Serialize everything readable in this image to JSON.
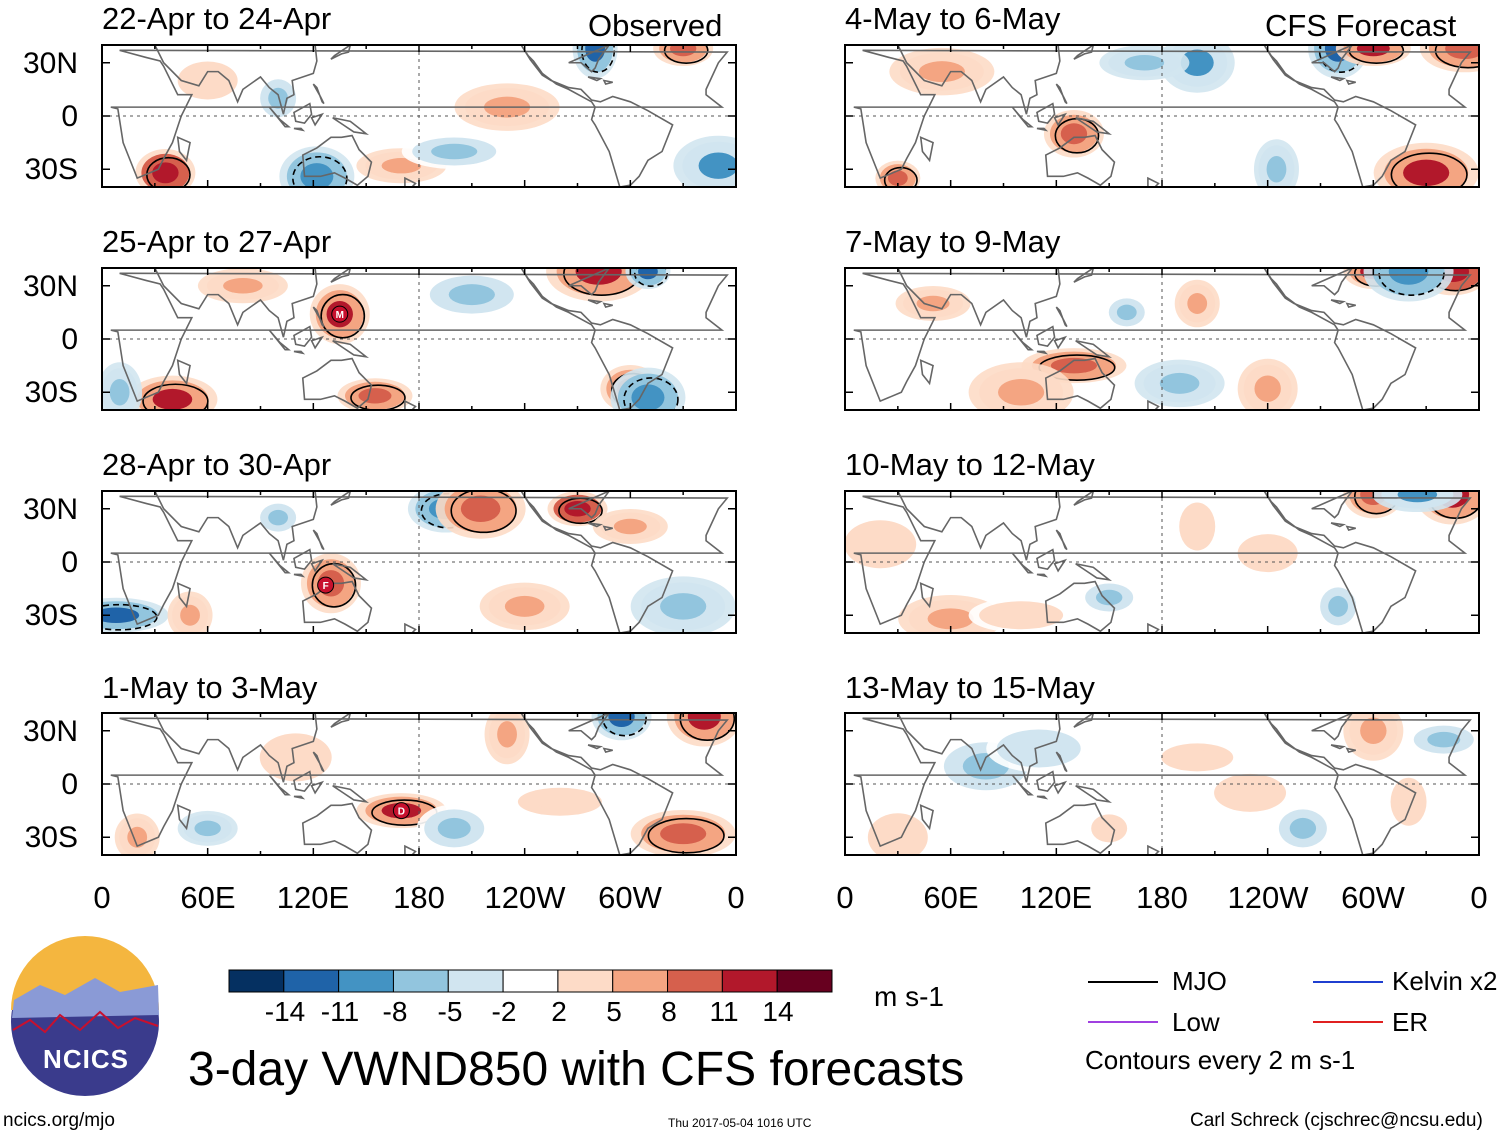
{
  "chart_data": {
    "type": "heatmap",
    "title": "3-day VWND850 with CFS forecasts",
    "variable": "VWND850",
    "units": "m s-1",
    "x_ticks": [
      "0",
      "60E",
      "120E",
      "180",
      "120W",
      "60W",
      "0"
    ],
    "y_ticks": [
      "30N",
      "0",
      "30S"
    ],
    "column_headers": {
      "observed": "Observed",
      "forecast": "CFS Forecast"
    },
    "panels": [
      {
        "title": "22-Apr to 24-Apr",
        "column": "observed",
        "blobs": [
          [
            36,
            -32,
            1,
            14
          ],
          [
            122,
            -34,
            2,
            -9
          ],
          [
            170,
            -28,
            3,
            8
          ],
          [
            230,
            5,
            4,
            6
          ],
          [
            280,
            38,
            5,
            -13
          ],
          [
            330,
            38,
            6,
            9
          ],
          [
            60,
            20,
            7,
            5
          ],
          [
            350,
            -28,
            8,
            -8
          ],
          [
            200,
            -20,
            9,
            -5
          ],
          [
            100,
            10,
            10,
            -5
          ]
        ]
      },
      {
        "title": "25-Apr to 27-Apr",
        "column": "observed",
        "blobs": [
          [
            135,
            14,
            11,
            12
          ],
          [
            155,
            -32,
            12,
            10
          ],
          [
            40,
            -34,
            13,
            12
          ],
          [
            282,
            38,
            14,
            13
          ],
          [
            310,
            38,
            15,
            -11
          ],
          [
            300,
            -28,
            16,
            9
          ],
          [
            310,
            -33,
            17,
            -9
          ],
          [
            80,
            30,
            18,
            6
          ],
          [
            210,
            25,
            19,
            -5
          ],
          [
            10,
            -30,
            20,
            -6
          ]
        ]
      },
      {
        "title": "28-Apr to 30-Apr",
        "column": "observed",
        "blobs": [
          [
            270,
            30,
            21,
            14
          ],
          [
            195,
            30,
            22,
            -10
          ],
          [
            215,
            30,
            23,
            9
          ],
          [
            8,
            -30,
            24,
            -13
          ],
          [
            50,
            -30,
            25,
            7
          ],
          [
            130,
            -12,
            26,
            11
          ],
          [
            300,
            20,
            27,
            6
          ],
          [
            240,
            -25,
            28,
            7
          ],
          [
            330,
            -25,
            29,
            -7
          ],
          [
            100,
            25,
            30,
            -5
          ]
        ]
      },
      {
        "title": "1-May to 3-May",
        "column": "observed",
        "blobs": [
          [
            295,
            38,
            31,
            -13
          ],
          [
            342,
            38,
            32,
            12
          ],
          [
            170,
            -15,
            33,
            12
          ],
          [
            330,
            -28,
            34,
            9
          ],
          [
            230,
            28,
            35,
            6
          ],
          [
            60,
            -25,
            36,
            -6
          ],
          [
            200,
            -25,
            37,
            -5
          ],
          [
            110,
            15,
            38,
            5
          ],
          [
            260,
            -10,
            39,
            5
          ],
          [
            20,
            -30,
            40,
            6
          ]
        ]
      },
      {
        "title": "4-May to 6-May",
        "column": "forecast",
        "blobs": [
          [
            280,
            38,
            41,
            -13
          ],
          [
            300,
            38,
            42,
            12
          ],
          [
            352,
            38,
            43,
            11
          ],
          [
            330,
            -32,
            44,
            12
          ],
          [
            30,
            -35,
            45,
            9
          ],
          [
            130,
            -10,
            46,
            11
          ],
          [
            200,
            30,
            47,
            -8
          ],
          [
            170,
            30,
            48,
            -7
          ],
          [
            55,
            25,
            49,
            6
          ],
          [
            245,
            -30,
            50,
            -6
          ]
        ]
      },
      {
        "title": "7-May to 9-May",
        "column": "forecast",
        "blobs": [
          [
            300,
            38,
            51,
            13
          ],
          [
            345,
            38,
            52,
            14
          ],
          [
            320,
            38,
            53,
            -10
          ],
          [
            130,
            -15,
            54,
            10
          ],
          [
            200,
            20,
            55,
            6
          ],
          [
            240,
            -28,
            56,
            7
          ],
          [
            50,
            20,
            57,
            8
          ],
          [
            190,
            -25,
            58,
            -6
          ],
          [
            100,
            -30,
            59,
            6
          ],
          [
            160,
            15,
            60,
            -5
          ]
        ]
      },
      {
        "title": "10-May to 12-May",
        "column": "forecast",
        "blobs": [
          [
            300,
            38,
            61,
            9
          ],
          [
            345,
            38,
            62,
            12
          ],
          [
            325,
            38,
            63,
            -8
          ],
          [
            60,
            -32,
            64,
            6
          ],
          [
            200,
            20,
            65,
            5
          ],
          [
            150,
            -20,
            66,
            -5
          ],
          [
            240,
            5,
            67,
            5
          ],
          [
            20,
            10,
            68,
            5
          ],
          [
            100,
            -30,
            69,
            5
          ],
          [
            280,
            -25,
            70,
            -5
          ]
        ]
      },
      {
        "title": "13-May to 15-May",
        "column": "forecast",
        "blobs": [
          [
            300,
            30,
            71,
            6
          ],
          [
            340,
            25,
            72,
            -5
          ],
          [
            230,
            -5,
            73,
            5
          ],
          [
            80,
            10,
            74,
            -5
          ],
          [
            150,
            -25,
            75,
            5
          ],
          [
            260,
            -25,
            76,
            -5
          ],
          [
            30,
            -30,
            77,
            5
          ],
          [
            200,
            15,
            78,
            5
          ],
          [
            110,
            20,
            79,
            -4
          ],
          [
            320,
            -10,
            80,
            4
          ]
        ]
      }
    ],
    "colorbar": {
      "labels": [
        "-14",
        "-11",
        "-8",
        "-5",
        "-2",
        "2",
        "5",
        "8",
        "11",
        "14"
      ],
      "colors": [
        "#053061",
        "#1f63a8",
        "#4393c3",
        "#92c5de",
        "#d1e5f0",
        "#ffffff",
        "#fddbc7",
        "#f4a582",
        "#d6604d",
        "#b2182b",
        "#67001f"
      ],
      "units_label": "m s-1"
    }
  },
  "legend": {
    "items": [
      {
        "label": "MJO",
        "color": "#000000"
      },
      {
        "label": "Low",
        "color": "#a040e0"
      },
      {
        "label": "Kelvin x2",
        "color": "#1f3fd0"
      },
      {
        "label": "ER",
        "color": "#e02020"
      }
    ],
    "note": "Contours every 2 m s-1"
  },
  "logo": {
    "text": "NCICS"
  },
  "footer": {
    "url": "ncics.org/mjo",
    "timestamp": "Thu 2017-05-04 1016 UTC",
    "credit": "Carl Schreck (cjschrec@ncsu.edu)"
  },
  "storms": [
    {
      "panel": 1,
      "label": "M",
      "lon": 135,
      "lat": 14
    },
    {
      "panel": 2,
      "label": "F",
      "lon": 127,
      "lat": -13
    },
    {
      "panel": 3,
      "label": "D",
      "lon": 170,
      "lat": -15
    }
  ],
  "colors": {
    "land_outline": "#666666",
    "frame": "#000000",
    "background": "#ffffff"
  }
}
